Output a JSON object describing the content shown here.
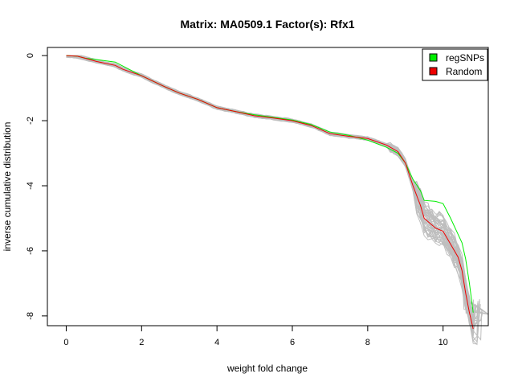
{
  "chart_data": {
    "type": "line",
    "title": "Matrix: MA0509.1 Factor(s): Rfx1",
    "xlabel": "weight fold change",
    "ylabel": "inverse cumulative distribution",
    "xlim": [
      -0.5,
      11.2
    ],
    "ylim": [
      -8.3,
      0.25
    ],
    "x_ticks": [
      0,
      2,
      4,
      6,
      8,
      10
    ],
    "y_ticks": [
      0,
      -2,
      -4,
      -6,
      -8
    ],
    "legend_position": "top-right",
    "legend": [
      {
        "label": "regSNPs",
        "color": "#00ee00"
      },
      {
        "label": "Random",
        "color": "#ee0000"
      }
    ],
    "background_series_color": "#bebebe",
    "series": [
      {
        "name": "regSNPs",
        "color": "#00ee00",
        "points": [
          [
            0,
            0
          ],
          [
            0.3,
            -0.02
          ],
          [
            0.5,
            -0.08
          ],
          [
            0.8,
            -0.12
          ],
          [
            1.3,
            -0.2
          ],
          [
            1.5,
            -0.32
          ],
          [
            2.0,
            -0.62
          ],
          [
            2.6,
            -0.95
          ],
          [
            3.0,
            -1.15
          ],
          [
            3.5,
            -1.35
          ],
          [
            4.0,
            -1.6
          ],
          [
            4.5,
            -1.72
          ],
          [
            5.0,
            -1.82
          ],
          [
            5.5,
            -1.9
          ],
          [
            6.0,
            -1.98
          ],
          [
            6.5,
            -2.12
          ],
          [
            7.0,
            -2.35
          ],
          [
            7.5,
            -2.45
          ],
          [
            8.0,
            -2.6
          ],
          [
            8.5,
            -2.82
          ],
          [
            8.8,
            -3.0
          ],
          [
            9.0,
            -3.3
          ],
          [
            9.2,
            -3.8
          ],
          [
            9.4,
            -4.15
          ],
          [
            9.5,
            -4.45
          ],
          [
            9.8,
            -4.48
          ],
          [
            10.0,
            -4.55
          ],
          [
            10.2,
            -5.0
          ],
          [
            10.4,
            -5.5
          ],
          [
            10.5,
            -5.75
          ],
          [
            10.6,
            -6.25
          ],
          [
            10.7,
            -7.0
          ],
          [
            10.8,
            -7.9
          ]
        ]
      },
      {
        "name": "Random",
        "color": "#ee0000",
        "points": [
          [
            0,
            0
          ],
          [
            0.3,
            -0.02
          ],
          [
            0.5,
            -0.08
          ],
          [
            0.8,
            -0.18
          ],
          [
            1.3,
            -0.3
          ],
          [
            1.5,
            -0.42
          ],
          [
            2.0,
            -0.62
          ],
          [
            2.6,
            -0.95
          ],
          [
            3.0,
            -1.15
          ],
          [
            3.5,
            -1.35
          ],
          [
            4.0,
            -1.6
          ],
          [
            4.5,
            -1.72
          ],
          [
            5.0,
            -1.85
          ],
          [
            5.5,
            -1.92
          ],
          [
            6.0,
            -2.0
          ],
          [
            6.5,
            -2.15
          ],
          [
            7.0,
            -2.4
          ],
          [
            7.5,
            -2.48
          ],
          [
            8.0,
            -2.55
          ],
          [
            8.5,
            -2.75
          ],
          [
            8.8,
            -2.95
          ],
          [
            9.0,
            -3.3
          ],
          [
            9.2,
            -4.0
          ],
          [
            9.4,
            -4.6
          ],
          [
            9.5,
            -5.0
          ],
          [
            9.8,
            -5.3
          ],
          [
            10.0,
            -5.4
          ],
          [
            10.2,
            -5.8
          ],
          [
            10.4,
            -6.2
          ],
          [
            10.5,
            -6.6
          ],
          [
            10.6,
            -7.3
          ],
          [
            10.7,
            -7.9
          ],
          [
            10.8,
            -8.4
          ]
        ]
      }
    ]
  }
}
